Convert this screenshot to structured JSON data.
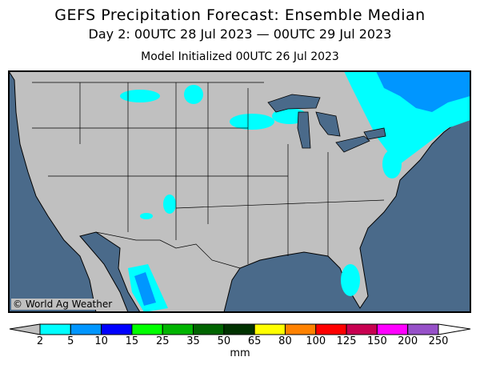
{
  "header": {
    "title": "GEFS Precipitation Forecast: Ensemble Median",
    "subtitle": "Day 2: 00UTC 28 Jul 2023 — 00UTC 29 Jul 2023",
    "initialized": "Model Initialized 00UTC 26 Jul 2023"
  },
  "map": {
    "copyright": "© World Ag Weather",
    "ocean_color": "#4a6a8a",
    "land_color": "#c0c0c0"
  },
  "legend": {
    "unit": "mm",
    "ticks": [
      "2",
      "5",
      "10",
      "15",
      "25",
      "35",
      "50",
      "65",
      "80",
      "100",
      "125",
      "150",
      "200",
      "250"
    ],
    "colors": [
      "#00ffff",
      "#0096ff",
      "#0000ff",
      "#00ff00",
      "#00b400",
      "#006400",
      "#003200",
      "#ffff00",
      "#ff8200",
      "#ff0000",
      "#c80050",
      "#ff00ff",
      "#9650c8"
    ],
    "below_color": "#c0c0c0",
    "above_color": "#ffffff"
  }
}
